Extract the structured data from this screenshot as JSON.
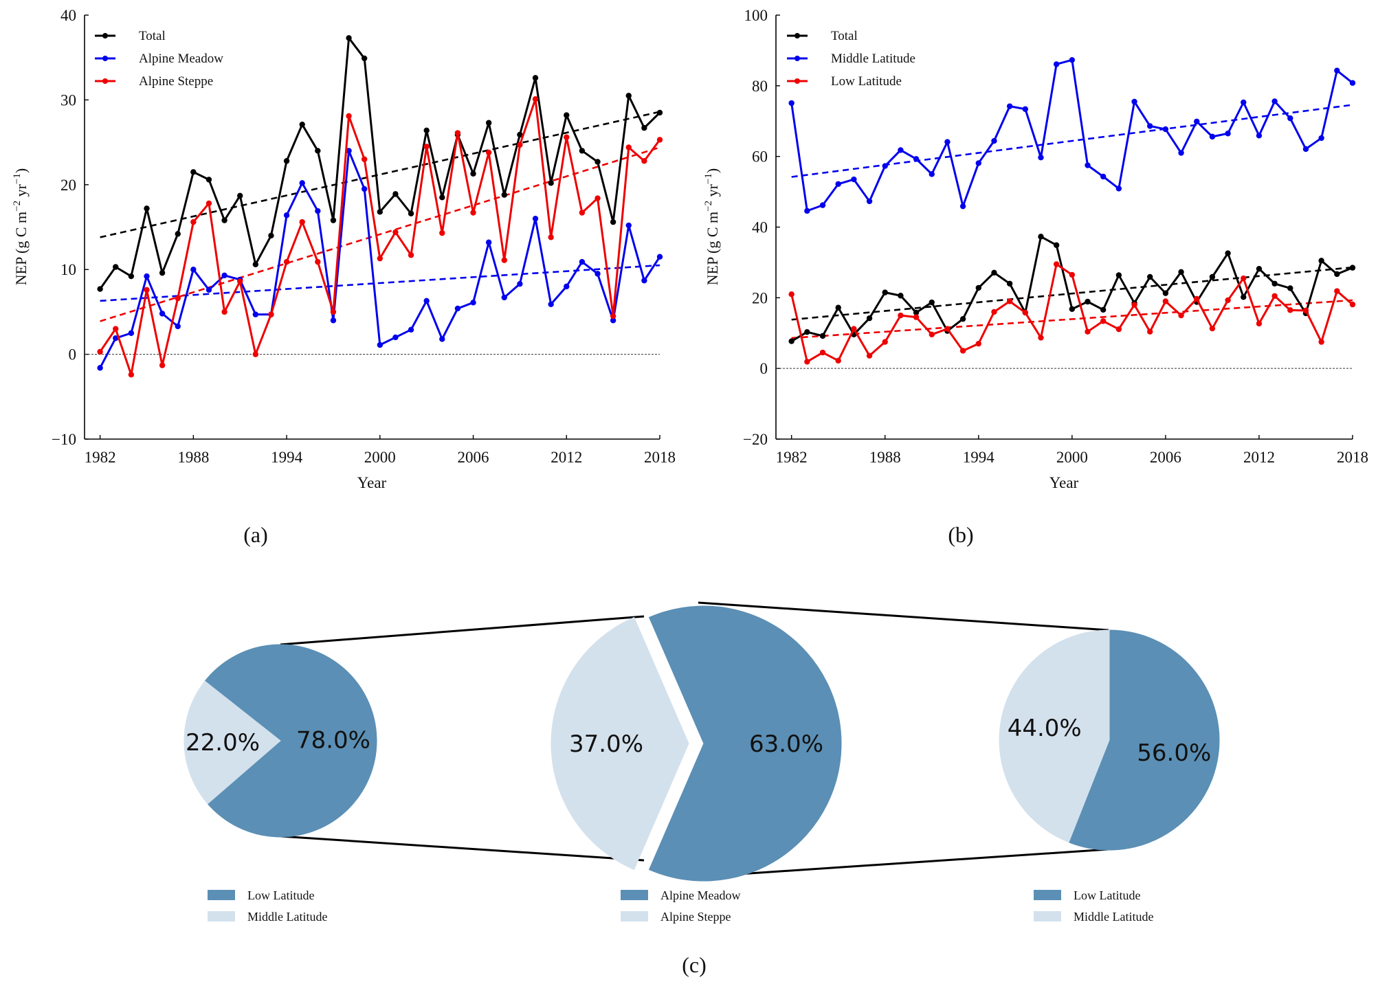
{
  "chart_data": [
    {
      "type": "line",
      "panel_label": "(a)",
      "xlabel": "Year",
      "ylabel": "NEP (g C m",
      "ylabel_sup1": "−2",
      "ylabel_mid": " yr",
      "ylabel_sup2": "−1",
      "ylabel_end": ")",
      "xlim": [
        1981,
        2018
      ],
      "ylim": [
        -10,
        40
      ],
      "xticks": [
        1982,
        1988,
        1994,
        2000,
        2006,
        2012,
        2018
      ],
      "yticks": [
        -10,
        0,
        10,
        20,
        30,
        40
      ],
      "x": [
        1982,
        1983,
        1984,
        1985,
        1986,
        1987,
        1988,
        1989,
        1990,
        1991,
        1992,
        1993,
        1994,
        1995,
        1996,
        1997,
        1998,
        1999,
        2000,
        2001,
        2002,
        2003,
        2004,
        2005,
        2006,
        2007,
        2008,
        2009,
        2010,
        2011,
        2012,
        2013,
        2014,
        2015,
        2016,
        2017,
        2018
      ],
      "series": [
        {
          "name": "Total",
          "color": "#000000",
          "values": [
            7.7,
            10.3,
            9.2,
            17.2,
            9.6,
            14.2,
            21.5,
            20.6,
            15.8,
            18.7,
            10.6,
            14.0,
            22.8,
            27.1,
            24.0,
            15.8,
            37.3,
            34.9,
            16.8,
            18.9,
            16.6,
            26.4,
            18.5,
            25.9,
            21.3,
            27.3,
            18.8,
            25.9,
            32.6,
            20.2,
            28.2,
            24.0,
            22.7,
            15.6,
            30.5,
            26.7,
            28.5
          ],
          "trend": [
            13.8,
            28.6
          ]
        },
        {
          "name": "Alpine Meadow",
          "color": "#0000ee",
          "values": [
            -1.6,
            1.9,
            2.5,
            9.2,
            4.8,
            3.3,
            10.0,
            7.6,
            9.3,
            8.8,
            4.7,
            4.7,
            16.4,
            20.2,
            16.9,
            4.0,
            24.0,
            19.5,
            1.1,
            2.0,
            2.9,
            6.3,
            1.8,
            5.4,
            6.1,
            13.2,
            6.7,
            8.3,
            16.0,
            5.9,
            8.0,
            10.9,
            9.5,
            4.0,
            15.2,
            8.7,
            11.5
          ],
          "trend": [
            6.3,
            10.5
          ]
        },
        {
          "name": "Alpine Steppe",
          "color": "#ee0000",
          "values": [
            0.3,
            3.0,
            -2.4,
            7.6,
            -1.3,
            6.6,
            15.6,
            17.8,
            5.0,
            8.6,
            0.0,
            4.7,
            10.9,
            15.6,
            10.9,
            5.0,
            28.1,
            23.0,
            11.3,
            14.4,
            11.7,
            24.5,
            14.3,
            26.1,
            16.7,
            23.8,
            11.1,
            24.7,
            30.1,
            13.8,
            25.6,
            16.7,
            18.4,
            4.5,
            24.4,
            22.8,
            25.3
          ],
          "trend": [
            3.9,
            24.4
          ]
        }
      ],
      "reference_line": 0
    },
    {
      "type": "line",
      "panel_label": "(b)",
      "xlabel": "Year",
      "ylabel": "NEP (g C m",
      "ylabel_sup1": "−2",
      "ylabel_mid": " yr",
      "ylabel_sup2": "−1",
      "ylabel_end": ")",
      "xlim": [
        1981,
        2018
      ],
      "ylim": [
        -20,
        100
      ],
      "xticks": [
        1982,
        1988,
        1994,
        2000,
        2006,
        2012,
        2018
      ],
      "yticks": [
        -20,
        0,
        20,
        40,
        60,
        80,
        100
      ],
      "x": [
        1982,
        1983,
        1984,
        1985,
        1986,
        1987,
        1988,
        1989,
        1990,
        1991,
        1992,
        1993,
        1994,
        1995,
        1996,
        1997,
        1998,
        1999,
        2000,
        2001,
        2002,
        2003,
        2004,
        2005,
        2006,
        2007,
        2008,
        2009,
        2010,
        2011,
        2012,
        2013,
        2014,
        2015,
        2016,
        2017,
        2018
      ],
      "series": [
        {
          "name": "Total",
          "color": "#000000",
          "values": [
            7.7,
            10.3,
            9.2,
            17.2,
            9.6,
            14.2,
            21.5,
            20.6,
            15.8,
            18.7,
            10.6,
            14.0,
            22.8,
            27.1,
            24.0,
            15.8,
            37.3,
            34.9,
            16.8,
            18.9,
            16.6,
            26.4,
            18.5,
            25.9,
            21.3,
            27.3,
            18.8,
            25.9,
            32.6,
            20.2,
            28.2,
            24.0,
            22.7,
            15.6,
            30.5,
            26.7,
            28.5
          ],
          "trend": [
            13.8,
            28.6
          ]
        },
        {
          "name": "Middle Latitude",
          "color": "#0000ee",
          "values": [
            75.1,
            44.6,
            46.2,
            52.2,
            53.5,
            47.3,
            57.3,
            61.8,
            59.3,
            55.0,
            64.1,
            45.9,
            58.1,
            64.4,
            74.2,
            73.4,
            59.7,
            86.1,
            87.3,
            57.5,
            54.3,
            50.9,
            75.5,
            68.6,
            67.7,
            61.0,
            69.9,
            65.6,
            66.5,
            75.3,
            65.9,
            75.6,
            70.8,
            62.1,
            65.2,
            84.3,
            80.8
          ],
          "trend": [
            54.2,
            74.6
          ]
        },
        {
          "name": "Low Latitude",
          "color": "#ee0000",
          "values": [
            21.0,
            1.9,
            4.5,
            2.2,
            11.2,
            3.6,
            7.5,
            15.0,
            14.5,
            9.6,
            11.2,
            5.0,
            7.0,
            16.0,
            19.0,
            15.8,
            8.7,
            29.5,
            26.5,
            10.4,
            13.4,
            11.1,
            18.0,
            10.4,
            19.0,
            15.0,
            19.7,
            11.3,
            19.3,
            25.5,
            12.7,
            20.5,
            16.5,
            16.4,
            7.5,
            21.9,
            18.1
          ],
          "trend": [
            8.6,
            19.3
          ]
        }
      ],
      "reference_line": 0
    },
    {
      "type": "pie",
      "panel_label": "(c)",
      "pies": [
        {
          "slices": [
            {
              "label": "Low Latitude",
              "value": 78.0,
              "text": "78.0%",
              "color": "#5b8fb5"
            },
            {
              "label": "Middle Latitude",
              "value": 22.0,
              "text": "22.0%",
              "color": "#d3e1ed"
            }
          ]
        },
        {
          "slices": [
            {
              "label": "Alpine Meadow",
              "value": 63.0,
              "text": "63.0%",
              "color": "#5b8fb5"
            },
            {
              "label": "Alpine Steppe",
              "value": 37.0,
              "text": "37.0%",
              "color": "#d3e1ed"
            }
          ]
        },
        {
          "slices": [
            {
              "label": "Low Latitude",
              "value": 56.0,
              "text": "56.0%",
              "color": "#5b8fb5"
            },
            {
              "label": "Middle Latitude",
              "value": 44.0,
              "text": "44.0%",
              "color": "#d3e1ed"
            }
          ]
        }
      ]
    }
  ]
}
